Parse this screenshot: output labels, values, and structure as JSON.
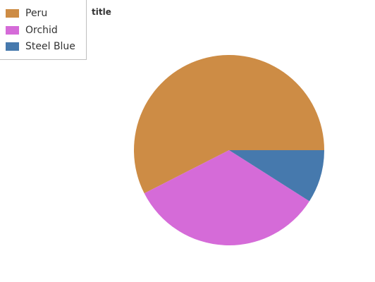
{
  "chart_data": {
    "type": "pie",
    "title": "title",
    "categories": [
      "Peru",
      "Orchid",
      "Steel Blue"
    ],
    "values": [
      57.5,
      33.5,
      9.0
    ],
    "colors": [
      "#cd8c45",
      "#d56bd8",
      "#4679ad"
    ],
    "legend_position": "top-left",
    "start_angle_deg": 90,
    "direction": "clockwise"
  }
}
